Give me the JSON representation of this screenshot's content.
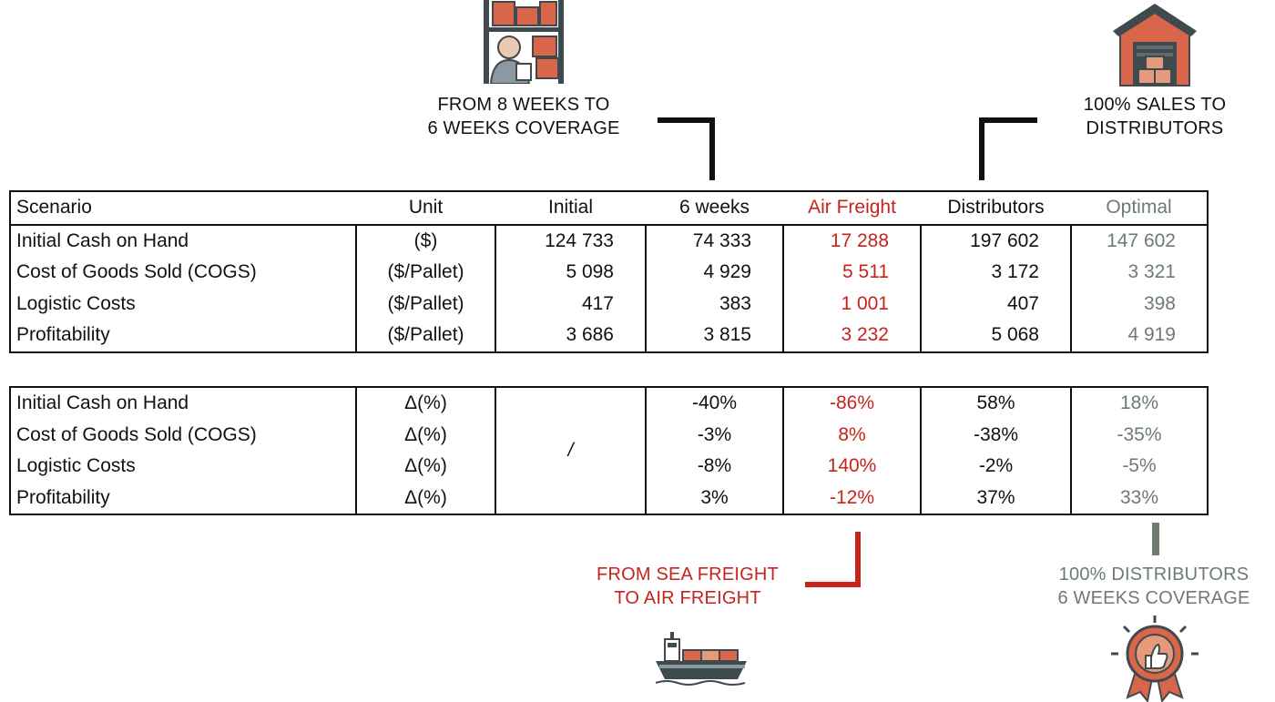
{
  "colors": {
    "text": "#111111",
    "air_freight": "#c8231c",
    "optimal": "#6d7b70",
    "icon_brick": "#d9664a",
    "icon_dark": "#3f4a4e"
  },
  "callouts": {
    "coverage_line1": "FROM 8 WEEKS TO",
    "coverage_line2": "6 WEEKS COVERAGE",
    "sales_line1": "100% SALES TO",
    "sales_line2": "DISTRIBUTORS",
    "freight_line1": "FROM SEA FREIGHT",
    "freight_line2": "TO AIR FREIGHT",
    "optimal_line1": "100% DISTRIBUTORS",
    "optimal_line2": "6 WEEKS COVERAGE"
  },
  "icons": {
    "warehouse_worker": "warehouse-worker-icon",
    "warehouse": "warehouse-icon",
    "cargo_ship": "cargo-ship-icon",
    "award_badge": "award-badge-icon"
  },
  "table1": {
    "headers": [
      "Scenario",
      "Unit",
      "Initial",
      "6 weeks",
      "Air Freight",
      "Distributors",
      "Optimal"
    ],
    "rows": [
      {
        "name": "Initial Cash on Hand",
        "unit": "($)",
        "initial": "124 733",
        "six_weeks": "74 333",
        "air": "17 288",
        "distributors": "197 602",
        "optimal": "147 602"
      },
      {
        "name": "Cost of Goods Sold (COGS)",
        "unit": "($/Pallet)",
        "initial": "5 098",
        "six_weeks": "4 929",
        "air": "5 511",
        "distributors": "3 172",
        "optimal": "3 321"
      },
      {
        "name": "Logistic Costs",
        "unit": "($/Pallet)",
        "initial": "417",
        "six_weeks": "383",
        "air": "1 001",
        "distributors": "407",
        "optimal": "398"
      },
      {
        "name": "Profitability",
        "unit": "($/Pallet)",
        "initial": "3 686",
        "six_weeks": "3 815",
        "air": "3 232",
        "distributors": "5 068",
        "optimal": "4 919"
      }
    ]
  },
  "table2": {
    "initial_placeholder": "/",
    "rows": [
      {
        "name": "Initial Cash on Hand",
        "unit": "Δ(%)",
        "six_weeks": "-40%",
        "air": "-86%",
        "distributors": "58%",
        "optimal": "18%"
      },
      {
        "name": "Cost of Goods Sold (COGS)",
        "unit": "Δ(%)",
        "six_weeks": "-3%",
        "air": "8%",
        "distributors": "-38%",
        "optimal": "-35%"
      },
      {
        "name": "Logistic Costs",
        "unit": "Δ(%)",
        "six_weeks": "-8%",
        "air": "140%",
        "distributors": "-2%",
        "optimal": "-5%"
      },
      {
        "name": "Profitability",
        "unit": "Δ(%)",
        "six_weeks": "3%",
        "air": "-12%",
        "distributors": "37%",
        "optimal": "33%"
      }
    ]
  }
}
